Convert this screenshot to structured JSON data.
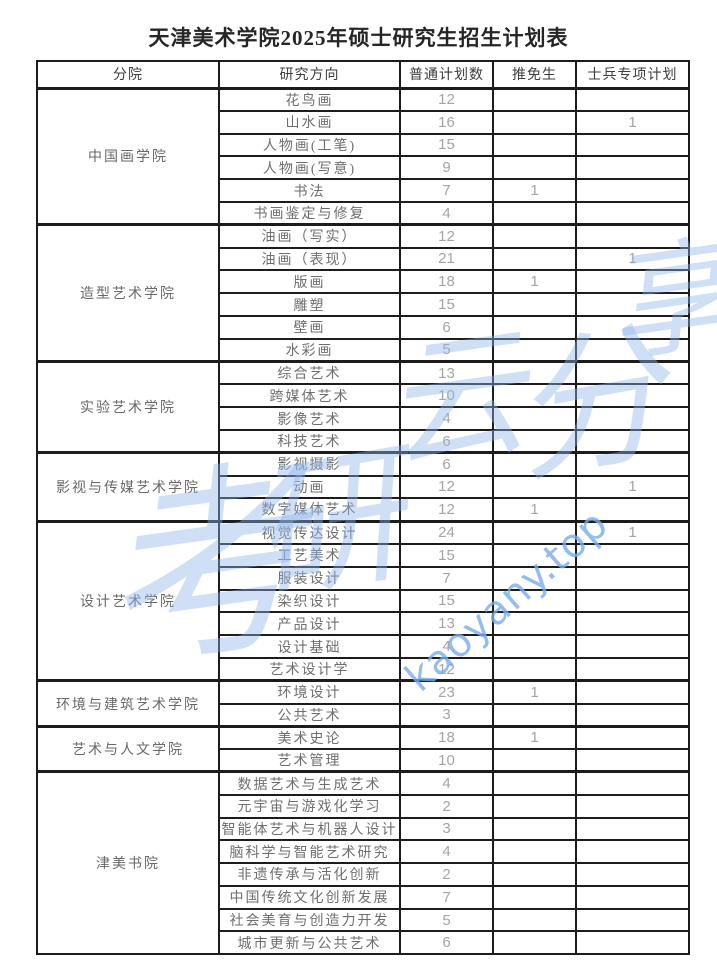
{
  "title": "天津美术学院2025年硕士研究生招生计划表",
  "watermark": {
    "cn": "考研云分享",
    "site": "kaoyany.top",
    "color": "#8fb7ec"
  },
  "table": {
    "headers": [
      "分院",
      "研究方向",
      "普通计划数",
      "推免生",
      "士兵专项计划"
    ],
    "groups": [
      {
        "college": "中国画学院",
        "rows": [
          {
            "direction": "花鸟画",
            "plan": "12",
            "tuimian": "",
            "soldier": ""
          },
          {
            "direction": "山水画",
            "plan": "16",
            "tuimian": "",
            "soldier": "1"
          },
          {
            "direction": "人物画(工笔)",
            "plan": "15",
            "tuimian": "",
            "soldier": ""
          },
          {
            "direction": "人物画(写意)",
            "plan": "9",
            "tuimian": "",
            "soldier": ""
          },
          {
            "direction": "书法",
            "plan": "7",
            "tuimian": "1",
            "soldier": ""
          },
          {
            "direction": "书画鉴定与修复",
            "plan": "4",
            "tuimian": "",
            "soldier": ""
          }
        ]
      },
      {
        "college": "造型艺术学院",
        "rows": [
          {
            "direction": "油画（写实）",
            "plan": "12",
            "tuimian": "",
            "soldier": ""
          },
          {
            "direction": "油画（表现）",
            "plan": "21",
            "tuimian": "",
            "soldier": "1"
          },
          {
            "direction": "版画",
            "plan": "18",
            "tuimian": "1",
            "soldier": ""
          },
          {
            "direction": "雕塑",
            "plan": "15",
            "tuimian": "",
            "soldier": ""
          },
          {
            "direction": "壁画",
            "plan": "6",
            "tuimian": "",
            "soldier": ""
          },
          {
            "direction": "水彩画",
            "plan": "5",
            "tuimian": "",
            "soldier": ""
          }
        ]
      },
      {
        "college": "实验艺术学院",
        "rows": [
          {
            "direction": "综合艺术",
            "plan": "13",
            "tuimian": "",
            "soldier": ""
          },
          {
            "direction": "跨媒体艺术",
            "plan": "10",
            "tuimian": "",
            "soldier": ""
          },
          {
            "direction": "影像艺术",
            "plan": "4",
            "tuimian": "",
            "soldier": ""
          },
          {
            "direction": "科技艺术",
            "plan": "6",
            "tuimian": "",
            "soldier": ""
          }
        ]
      },
      {
        "college": "影视与传媒艺术学院",
        "rows": [
          {
            "direction": "影视摄影",
            "plan": "6",
            "tuimian": "",
            "soldier": ""
          },
          {
            "direction": "动画",
            "plan": "12",
            "tuimian": "",
            "soldier": "1"
          },
          {
            "direction": "数字媒体艺术",
            "plan": "12",
            "tuimian": "1",
            "soldier": ""
          }
        ]
      },
      {
        "college": "设计艺术学院",
        "rows": [
          {
            "direction": "视觉传达设计",
            "plan": "24",
            "tuimian": "",
            "soldier": "1"
          },
          {
            "direction": "工艺美术",
            "plan": "15",
            "tuimian": "",
            "soldier": ""
          },
          {
            "direction": "服装设计",
            "plan": "7",
            "tuimian": "",
            "soldier": ""
          },
          {
            "direction": "染织设计",
            "plan": "15",
            "tuimian": "",
            "soldier": ""
          },
          {
            "direction": "产品设计",
            "plan": "13",
            "tuimian": "",
            "soldier": ""
          },
          {
            "direction": "设计基础",
            "plan": "4",
            "tuimian": "",
            "soldier": ""
          },
          {
            "direction": "艺术设计学",
            "plan": "12",
            "tuimian": "",
            "soldier": ""
          }
        ]
      },
      {
        "college": "环境与建筑艺术学院",
        "rows": [
          {
            "direction": "环境设计",
            "plan": "23",
            "tuimian": "1",
            "soldier": ""
          },
          {
            "direction": "公共艺术",
            "plan": "3",
            "tuimian": "",
            "soldier": ""
          }
        ]
      },
      {
        "college": "艺术与人文学院",
        "rows": [
          {
            "direction": "美术史论",
            "plan": "18",
            "tuimian": "1",
            "soldier": ""
          },
          {
            "direction": "艺术管理",
            "plan": "10",
            "tuimian": "",
            "soldier": ""
          }
        ]
      },
      {
        "college": "津美书院",
        "rows": [
          {
            "direction": "数据艺术与生成艺术",
            "plan": "4",
            "tuimian": "",
            "soldier": ""
          },
          {
            "direction": "元宇宙与游戏化学习",
            "plan": "2",
            "tuimian": "",
            "soldier": ""
          },
          {
            "direction": "智能体艺术与机器人设计",
            "plan": "3",
            "tuimian": "",
            "soldier": ""
          },
          {
            "direction": "脑科学与智能艺术研究",
            "plan": "4",
            "tuimian": "",
            "soldier": ""
          },
          {
            "direction": "非遗传承与活化创新",
            "plan": "2",
            "tuimian": "",
            "soldier": ""
          },
          {
            "direction": "中国传统文化创新发展",
            "plan": "7",
            "tuimian": "",
            "soldier": ""
          },
          {
            "direction": "社会美育与创造力开发",
            "plan": "5",
            "tuimian": "",
            "soldier": ""
          },
          {
            "direction": "城市更新与公共艺术",
            "plan": "6",
            "tuimian": "",
            "soldier": ""
          }
        ]
      }
    ]
  }
}
